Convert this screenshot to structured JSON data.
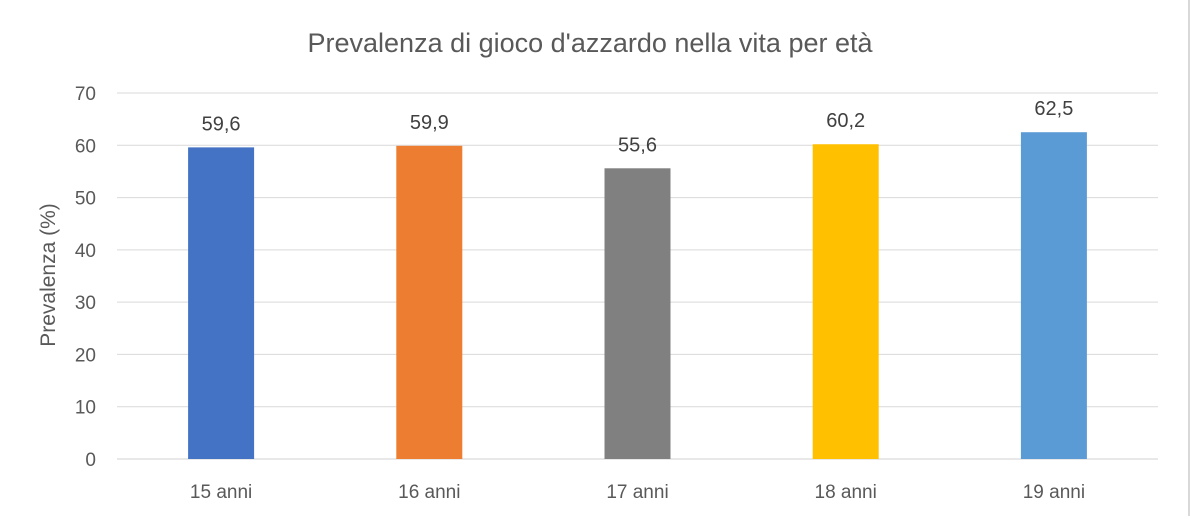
{
  "chart_data": {
    "type": "bar",
    "title": "Prevalenza di gioco d'azzardo nella vita per età",
    "xlabel": "",
    "ylabel": "Prevalenza (%)",
    "categories": [
      "15 anni",
      "16 anni",
      "17 anni",
      "18 anni",
      "19 anni"
    ],
    "values": [
      59.6,
      59.9,
      55.6,
      60.2,
      62.5
    ],
    "value_labels": [
      "59,6",
      "59,9",
      "55,6",
      "60,2",
      "62,5"
    ],
    "bar_colors": [
      "#4472c4",
      "#ed7d31",
      "#808080",
      "#ffc000",
      "#5b9bd5"
    ],
    "ylim": [
      0,
      70
    ],
    "yticks": [
      0,
      10,
      20,
      30,
      40,
      50,
      60,
      70
    ],
    "grid": true,
    "legend": "none"
  }
}
